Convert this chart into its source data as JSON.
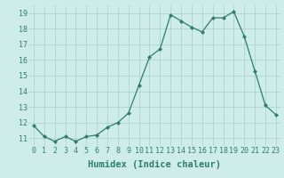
{
  "xlabel": "Humidex (Indice chaleur)",
  "ylabel": "",
  "x": [
    0,
    1,
    2,
    3,
    4,
    5,
    6,
    7,
    8,
    9,
    10,
    11,
    12,
    13,
    14,
    15,
    16,
    17,
    18,
    19,
    20,
    21,
    22,
    23
  ],
  "y": [
    11.8,
    11.1,
    10.8,
    11.1,
    10.8,
    11.1,
    11.2,
    11.7,
    12.0,
    12.6,
    14.4,
    16.2,
    16.7,
    18.9,
    18.5,
    18.1,
    17.8,
    18.7,
    18.7,
    19.1,
    17.5,
    15.3,
    13.1,
    12.5
  ],
  "line_color": "#2e7d6e",
  "marker": "D",
  "marker_size": 2,
  "bg_color": "#ceecea",
  "grid_color": "#aed4d1",
  "tick_color": "#2e7d6e",
  "label_color": "#2e7d6e",
  "ylim": [
    10.5,
    19.5
  ],
  "yticks": [
    11,
    12,
    13,
    14,
    15,
    16,
    17,
    18,
    19
  ],
  "xticks": [
    0,
    1,
    2,
    3,
    4,
    5,
    6,
    7,
    8,
    9,
    10,
    11,
    12,
    13,
    14,
    15,
    16,
    17,
    18,
    19,
    20,
    21,
    22,
    23
  ],
  "xlabel_fontsize": 7.5,
  "tick_fontsize": 6.0
}
